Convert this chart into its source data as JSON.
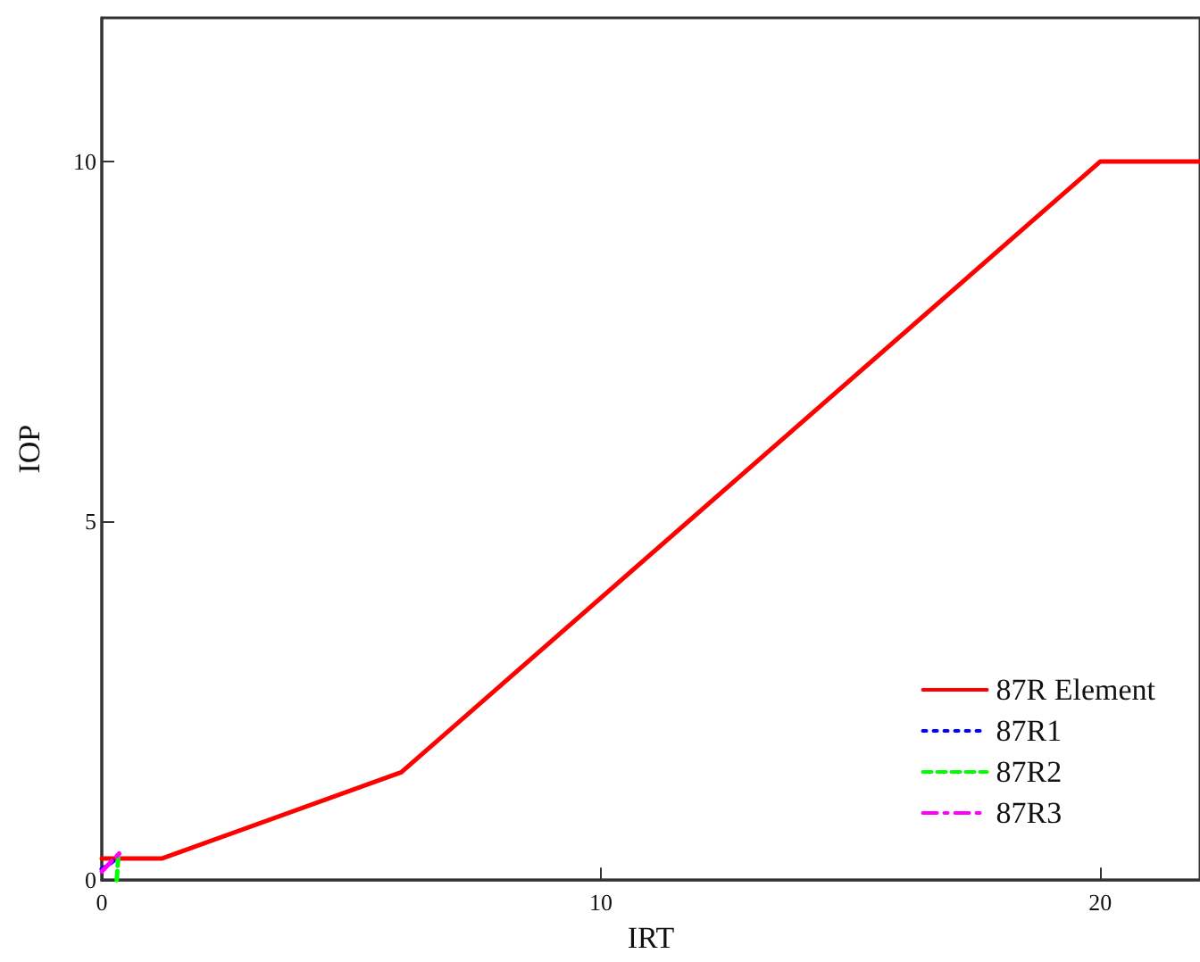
{
  "chart_data": {
    "type": "line",
    "xlabel": "IRT",
    "ylabel": "IOP",
    "xlim": [
      0,
      22
    ],
    "xticks": [
      0,
      10,
      20
    ],
    "ylim": [
      0,
      12
    ],
    "yticks": [
      0,
      5,
      10
    ],
    "grid": false,
    "legend": "bottom right",
    "marker": "none",
    "series": [
      {
        "name": "87R Element",
        "color": "#ff0000",
        "line_style": "solid",
        "x": [
          0,
          1.2,
          6,
          20,
          22
        ],
        "values": [
          0.3,
          0.3,
          1.5,
          10,
          10
        ]
      },
      {
        "name": "87R1",
        "color": "#0000ff",
        "line_style": "dotted",
        "x": [
          0,
          0.3
        ],
        "values": [
          0.15,
          0.3
        ]
      },
      {
        "name": "87R2",
        "color": "#00ff00",
        "line_style": "dashed",
        "x": [
          0.3,
          0.33
        ],
        "values": [
          0,
          0.33
        ]
      },
      {
        "name": "87R3",
        "color": "#ff00ff",
        "line_style": "dashdot",
        "x": [
          0,
          0.35
        ],
        "values": [
          0.12,
          0.37
        ]
      }
    ]
  }
}
